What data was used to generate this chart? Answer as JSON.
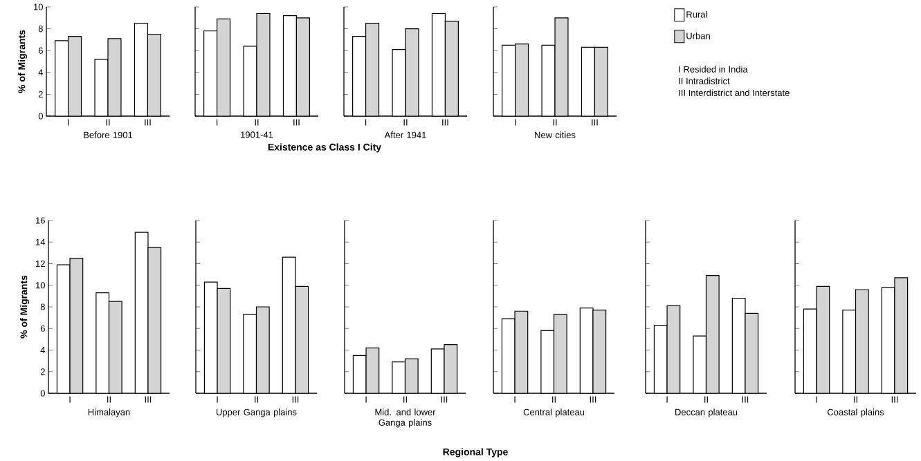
{
  "chart_data": [
    {
      "type": "bar",
      "categories": [
        "I",
        "II",
        "III"
      ],
      "xlabel": "Before 1901",
      "ylabel": "% of Migrants",
      "ylim": [
        0,
        10
      ],
      "yticks": [
        0,
        2,
        4,
        6,
        8,
        10
      ],
      "series": [
        {
          "color": "#ffffff",
          "values": [
            6.9,
            5.2,
            8.5
          ]
        },
        {
          "color": "#d4d4d4",
          "values": [
            7.3,
            7.1,
            7.5
          ]
        }
      ],
      "annotations": [
        "Existence as Class I City"
      ]
    },
    {
      "type": "bar",
      "categories": [
        "I",
        "II",
        "III"
      ],
      "xlabel": "1901-41",
      "ylim": [
        0,
        10
      ],
      "yticks": [
        0,
        2,
        4,
        6,
        8,
        10
      ],
      "tick_labels": "x",
      "series": [
        {
          "color": "#ffffff",
          "values": [
            7.8,
            6.4,
            9.2
          ]
        },
        {
          "color": "#d4d4d4",
          "values": [
            8.9,
            9.4,
            9.0
          ]
        }
      ]
    },
    {
      "type": "bar",
      "categories": [
        "I",
        "II",
        "III"
      ],
      "xlabel": "After 1941",
      "ylim": [
        0,
        10
      ],
      "yticks": [
        0,
        2,
        4,
        6,
        8,
        10
      ],
      "tick_labels": "x",
      "series": [
        {
          "color": "#ffffff",
          "values": [
            7.3,
            6.1,
            9.4
          ]
        },
        {
          "color": "#d4d4d4",
          "values": [
            8.5,
            8.0,
            8.7
          ]
        }
      ]
    },
    {
      "type": "bar",
      "categories": [
        "I",
        "II",
        "III"
      ],
      "xlabel": "New cities",
      "ylim": [
        0,
        10
      ],
      "yticks": [
        0,
        2,
        4,
        6,
        8,
        10
      ],
      "tick_labels": "x",
      "legend": "right",
      "series": [
        {
          "name": "Rural",
          "color": "#ffffff",
          "values": [
            6.5,
            6.5,
            6.3
          ]
        },
        {
          "name": "Urban",
          "color": "#d4d4d4",
          "values": [
            6.6,
            9.0,
            6.3
          ]
        }
      ],
      "annotations": [
        "I Resided in India",
        "II Intradistrict",
        "III Interdistrict and Interstate"
      ]
    },
    {
      "type": "bar",
      "categories": [
        "I",
        "II",
        "III"
      ],
      "xlabel": "Himalayan",
      "ylabel": "% of Migrants",
      "ylim": [
        0,
        16
      ],
      "yticks": [
        0,
        2,
        4,
        6,
        8,
        10,
        12,
        14,
        16
      ],
      "series": [
        {
          "color": "#ffffff",
          "values": [
            11.9,
            9.3,
            14.9
          ]
        },
        {
          "color": "#d4d4d4",
          "values": [
            12.5,
            8.5,
            13.5
          ]
        }
      ],
      "annotations": [
        "Regional Type"
      ]
    },
    {
      "type": "bar",
      "categories": [
        "I",
        "II",
        "III"
      ],
      "xlabel": "Upper Ganga plains",
      "ylim": [
        0,
        16
      ],
      "yticks": [
        0,
        2,
        4,
        6,
        8,
        10,
        12,
        14,
        16
      ],
      "tick_labels": "x",
      "series": [
        {
          "color": "#ffffff",
          "values": [
            10.3,
            7.3,
            12.6
          ]
        },
        {
          "color": "#d4d4d4",
          "values": [
            9.7,
            8.0,
            9.9
          ]
        }
      ]
    },
    {
      "type": "bar",
      "categories": [
        "I",
        "II",
        "III"
      ],
      "xlabel": "Mid. and lower Ganga plains",
      "ylim": [
        0,
        16
      ],
      "yticks": [
        0,
        2,
        4,
        6,
        8,
        10,
        12,
        14,
        16
      ],
      "tick_labels": "x",
      "series": [
        {
          "color": "#ffffff",
          "values": [
            3.5,
            2.9,
            4.1
          ]
        },
        {
          "color": "#d4d4d4",
          "values": [
            4.2,
            3.2,
            4.5
          ]
        }
      ]
    },
    {
      "type": "bar",
      "categories": [
        "I",
        "II",
        "III"
      ],
      "xlabel": "Central plateau",
      "ylim": [
        0,
        16
      ],
      "yticks": [
        0,
        2,
        4,
        6,
        8,
        10,
        12,
        14,
        16
      ],
      "tick_labels": "x",
      "series": [
        {
          "color": "#ffffff",
          "values": [
            6.9,
            5.8,
            7.9
          ]
        },
        {
          "color": "#d4d4d4",
          "values": [
            7.6,
            7.3,
            7.7
          ]
        }
      ]
    },
    {
      "type": "bar",
      "categories": [
        "I",
        "II",
        "III"
      ],
      "xlabel": "Deccan plateau",
      "ylim": [
        0,
        16
      ],
      "yticks": [
        0,
        2,
        4,
        6,
        8,
        10,
        12,
        14,
        16
      ],
      "tick_labels": "x",
      "series": [
        {
          "color": "#ffffff",
          "values": [
            6.3,
            5.3,
            8.8
          ]
        },
        {
          "color": "#d4d4d4",
          "values": [
            8.1,
            10.9,
            7.4
          ]
        }
      ]
    },
    {
      "type": "bar",
      "categories": [
        "I",
        "II",
        "III"
      ],
      "xlabel": "Coastal plains",
      "ylim": [
        0,
        16
      ],
      "yticks": [
        0,
        2,
        4,
        6,
        8,
        10,
        12,
        14,
        16
      ],
      "tick_labels": "x",
      "series": [
        {
          "color": "#ffffff",
          "values": [
            7.8,
            7.7,
            9.8
          ]
        },
        {
          "color": "#d4d4d4",
          "values": [
            9.9,
            9.6,
            10.7
          ]
        }
      ]
    }
  ]
}
